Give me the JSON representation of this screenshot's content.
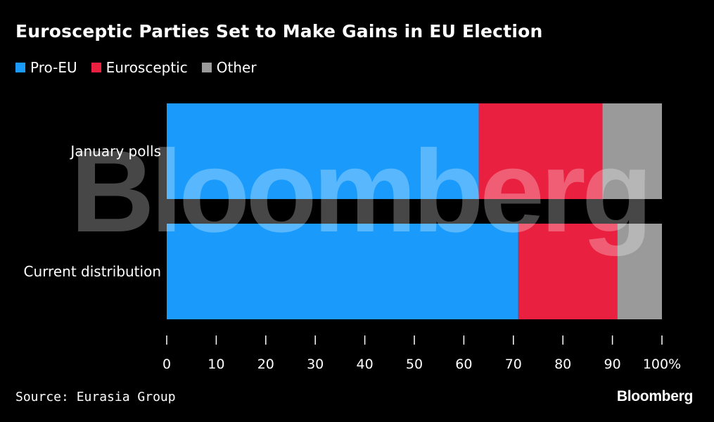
{
  "title": "Eurosceptic Parties Set to Make Gains in EU Election",
  "source": "Source: Eurasia Group",
  "brand": "Bloomberg",
  "watermark": "Bloomberg",
  "legend": [
    {
      "label": "Pro-EU",
      "color": "#1a9bfc"
    },
    {
      "label": "Eurosceptic",
      "color": "#ea2040"
    },
    {
      "label": "Other",
      "color": "#9a9a9a"
    }
  ],
  "chart_data": {
    "type": "bar",
    "orientation": "horizontal",
    "stacked": true,
    "categories": [
      "January polls",
      "Current distribution"
    ],
    "series": [
      {
        "name": "Pro-EU",
        "color": "#1a9bfc",
        "values": [
          63,
          71
        ]
      },
      {
        "name": "Eurosceptic",
        "color": "#ea2040",
        "values": [
          25,
          20
        ]
      },
      {
        "name": "Other",
        "color": "#9a9a9a",
        "values": [
          12,
          9
        ]
      }
    ],
    "xlim": [
      0,
      100
    ],
    "xticks": [
      0,
      10,
      20,
      30,
      40,
      50,
      60,
      70,
      80,
      90,
      100
    ],
    "xtick_labels": [
      "0",
      "10",
      "20",
      "30",
      "40",
      "50",
      "60",
      "70",
      "80",
      "90",
      "100%"
    ],
    "title": "Eurosceptic Parties Set to Make Gains in EU Election",
    "xlabel": "",
    "ylabel": "",
    "grid": false,
    "legend_position": "top-left"
  }
}
